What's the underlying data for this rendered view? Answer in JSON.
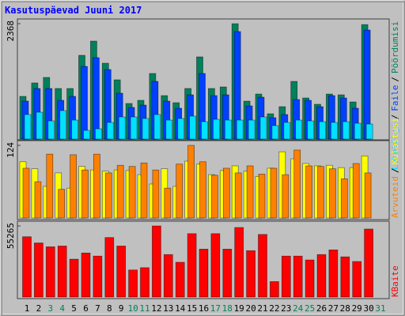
{
  "chart_data": [
    {
      "type": "bar",
      "title": "Kasutuspäevad Juuni 2017",
      "ylim": [
        0,
        2368
      ],
      "yticks": [
        2368
      ],
      "series": [
        {
          "name": "Pöördumisi",
          "color": "#00805c",
          "values": [
            876,
            1152,
            1265,
            1038,
            1038,
            1719,
            2011,
            1557,
            1216,
            730,
            795,
            1346,
            892,
            746,
            1038,
            1687,
            1038,
            1070,
            2368,
            778,
            924,
            519,
            665,
            1184,
            843,
            714,
            924,
            908,
            762,
            2350,
            0
          ]
        },
        {
          "name": "Faile",
          "color": "#0040ff",
          "values": [
            779,
            1038,
            1038,
            795,
            876,
            1492,
            1671,
            1427,
            941,
            649,
            697,
            1184,
            779,
            633,
            908,
            1346,
            892,
            908,
            2206,
            681,
            860,
            438,
            503,
            811,
            795,
            665,
            892,
            843,
            633,
            2238,
            0
          ]
        },
        {
          "name": "Lehekülgi",
          "color": "#00e0ff",
          "values": [
            503,
            551,
            373,
            584,
            389,
            178,
            211,
            341,
            454,
            454,
            422,
            503,
            389,
            422,
            470,
            357,
            405,
            389,
            389,
            389,
            454,
            276,
            341,
            389,
            373,
            357,
            341,
            357,
            324,
            308,
            0
          ]
        }
      ],
      "legend_separator": "/"
    },
    {
      "type": "bar",
      "ylim": [
        0,
        124
      ],
      "yticks": [
        124
      ],
      "series": [
        {
          "name": "Külastusi",
          "color": "#ffff00",
          "values": [
            96,
            84,
            54,
            77,
            51,
            88,
            82,
            80,
            82,
            81,
            74,
            58,
            84,
            54,
            97,
            92,
            74,
            81,
            89,
            80,
            71,
            85,
            113,
            101,
            93,
            89,
            90,
            86,
            86,
            106,
            0
          ]
        },
        {
          "name": "Arvuteid",
          "color": "#ff8000",
          "values": [
            85,
            62,
            109,
            49,
            108,
            82,
            109,
            77,
            90,
            88,
            94,
            82,
            51,
            92,
            124,
            96,
            73,
            85,
            77,
            89,
            75,
            85,
            74,
            116,
            89,
            88,
            84,
            67,
            93,
            77,
            0
          ]
        }
      ],
      "legend_separator": "/"
    },
    {
      "type": "bar",
      "ylim": [
        0,
        55265
      ],
      "yticks": [
        55265
      ],
      "categories": [
        1,
        2,
        3,
        4,
        5,
        6,
        7,
        8,
        9,
        10,
        11,
        12,
        13,
        14,
        15,
        16,
        17,
        18,
        19,
        20,
        21,
        22,
        23,
        24,
        25,
        26,
        27,
        28,
        29,
        30,
        31
      ],
      "category_colors": [
        "#000000",
        "#000000",
        "#00805c",
        "#00805c",
        "#000000",
        "#000000",
        "#000000",
        "#000000",
        "#000000",
        "#00805c",
        "#00805c",
        "#000000",
        "#000000",
        "#000000",
        "#000000",
        "#000000",
        "#00805c",
        "#00805c",
        "#000000",
        "#000000",
        "#000000",
        "#000000",
        "#000000",
        "#00805c",
        "#00805c",
        "#000000",
        "#000000",
        "#000000",
        "#000000",
        "#000000",
        "#00805c"
      ],
      "series": [
        {
          "name": "KBaite",
          "color": "#ff0000",
          "values": [
            46855,
            42049,
            39046,
            39646,
            29434,
            34240,
            31837,
            46254,
            39646,
            21025,
            22827,
            55265,
            33039,
            27032,
            49257,
            37243,
            49257,
            37243,
            54063,
            36042,
            48657,
            12014,
            31837,
            31837,
            28834,
            33039,
            36643,
            31236,
            27632,
            52862,
            0
          ]
        }
      ]
    }
  ]
}
